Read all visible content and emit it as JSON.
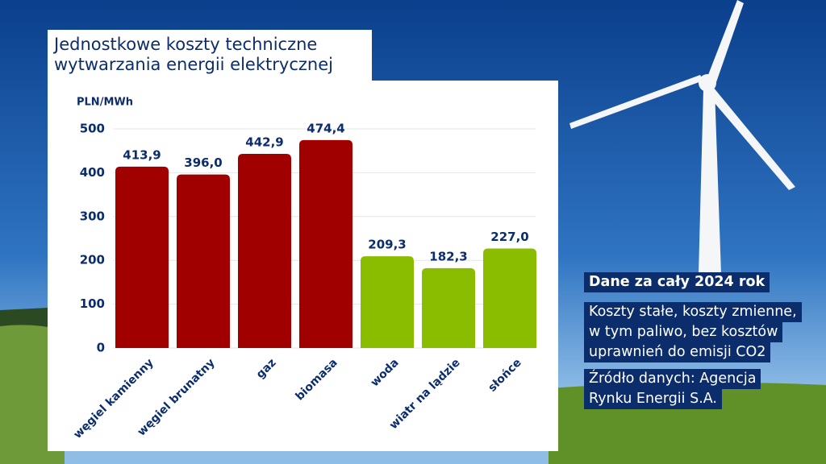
{
  "chart_data": {
    "type": "bar",
    "title": [
      "Jednostkowe koszty techniczne",
      "wytwarzania energii elektrycznej"
    ],
    "y_label": "PLN/MWh",
    "categories": [
      "węgiel kamienny",
      "węgiel brunatny",
      "gaz",
      "biomasa",
      "woda",
      "wiatr na lądzie",
      "słońce"
    ],
    "values": [
      413.9,
      396.0,
      442.9,
      474.4,
      209.3,
      182.3,
      227.0
    ],
    "value_labels": [
      "413,9",
      "396,0",
      "442,9",
      "474,4",
      "209,3",
      "182,3",
      "227,0"
    ],
    "colors": [
      "#a10000",
      "#a10000",
      "#a10000",
      "#a10000",
      "#8abd00",
      "#8abd00",
      "#8abd00"
    ],
    "ylim": [
      0,
      500
    ],
    "yticks": [
      0,
      100,
      200,
      300,
      400,
      500
    ],
    "grid": true
  },
  "info": {
    "heading": "Dane za cały 2024 rok",
    "note": [
      "Koszty stałe, koszty zmienne,",
      "w tym paliwo, bez kosztów",
      "uprawnień do emisji CO2"
    ],
    "source": [
      "Źródło danych: Agencja",
      "Rynku Energii S.A."
    ]
  }
}
